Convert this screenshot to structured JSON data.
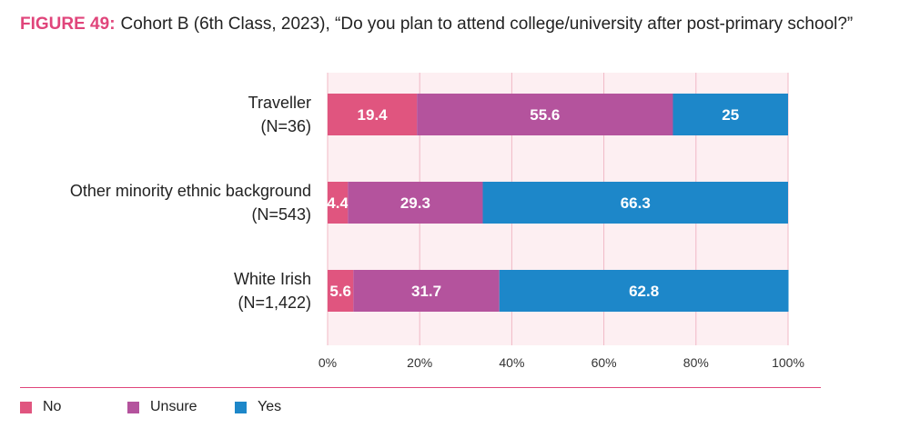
{
  "figure": {
    "label": "FIGURE 49:",
    "title": "Cohort B (6th Class, 2023), “Do you plan to attend college/university after post-primary school?”"
  },
  "colors": {
    "no": "#e0557f",
    "unsure": "#b4539d",
    "yes": "#1d87c9",
    "plot_bg": "#fdeff2",
    "gridline": "#f1b8c6",
    "accent": "#e0457b",
    "outside_label": "#e0557f",
    "tick_text": "#333333"
  },
  "chart_data": {
    "type": "bar",
    "orientation": "horizontal",
    "stacked": true,
    "title": "Cohort B (6th Class, 2023), “Do you plan to attend college/university after post-primary school?”",
    "categories": [
      {
        "name": "Traveller",
        "n": "(N=36)"
      },
      {
        "name": "Other minority ethnic background",
        "n": "(N=543)"
      },
      {
        "name": "White Irish",
        "n": "(N=1,422)"
      }
    ],
    "series": [
      {
        "name": "No",
        "key": "no",
        "values": [
          19.4,
          4.4,
          5.6
        ],
        "labels": [
          "19.4",
          "4.4",
          "5.6"
        ]
      },
      {
        "name": "Unsure",
        "key": "unsure",
        "values": [
          55.6,
          29.3,
          31.7
        ],
        "labels": [
          "55.6",
          "29.3",
          "31.7"
        ]
      },
      {
        "name": "Yes",
        "key": "yes",
        "values": [
          25,
          66.3,
          62.8
        ],
        "labels": [
          "25",
          "66.3",
          "62.8"
        ]
      }
    ],
    "x_ticks": [
      "0%",
      "20%",
      "40%",
      "60%",
      "80%",
      "100%"
    ],
    "xlim": [
      0,
      100
    ],
    "gridlines": true,
    "legend_position": "bottom-left"
  },
  "legend": [
    {
      "label": "No",
      "key": "no"
    },
    {
      "label": "Unsure",
      "key": "unsure"
    },
    {
      "label": "Yes",
      "key": "yes"
    }
  ]
}
